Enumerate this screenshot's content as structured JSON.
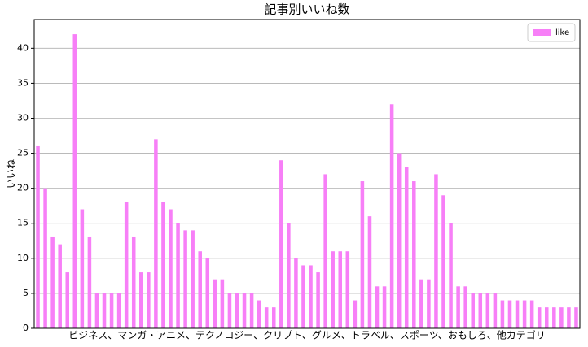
{
  "chart_data": {
    "type": "bar",
    "title": "記事別いいね数",
    "xlabel": "ビジネス、マンガ・アニメ、テクノロジー、クリプト、グルメ、トラベル、スポーツ、おもしろ、他カテゴリ",
    "ylabel": "いいね",
    "series": [
      {
        "name": "like",
        "color": "#f77ff7",
        "values": [
          26,
          20,
          13,
          12,
          8,
          42,
          17,
          13,
          5,
          5,
          5,
          5,
          18,
          13,
          8,
          8,
          27,
          18,
          17,
          15,
          14,
          14,
          11,
          10,
          7,
          7,
          5,
          5,
          5,
          5,
          4,
          3,
          3,
          24,
          15,
          10,
          9,
          9,
          8,
          22,
          11,
          11,
          11,
          4,
          21,
          16,
          6,
          6,
          32,
          25,
          23,
          21,
          7,
          7,
          22,
          19,
          15,
          6,
          6,
          5,
          5,
          5,
          5,
          4,
          4,
          4,
          4,
          4,
          3,
          3,
          3,
          3,
          3,
          3
        ]
      }
    ],
    "ylim": [
      0,
      44.1
    ],
    "yticks": [
      0,
      5,
      10,
      15,
      20,
      25,
      30,
      35,
      40
    ],
    "grid": true,
    "legend": "upper right"
  }
}
